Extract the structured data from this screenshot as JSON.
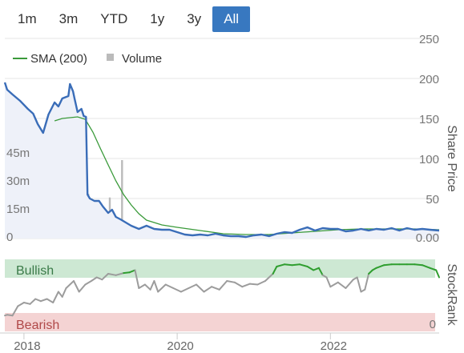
{
  "range_selector": {
    "buttons": [
      "1m",
      "3m",
      "YTD",
      "1y",
      "3y",
      "All"
    ],
    "active": "All"
  },
  "colors": {
    "price": "#3a6db8",
    "sma": "#3a9a3a",
    "volume": "#bbbbbb",
    "bullish_band": "#cde8d3",
    "bearish_band": "#f4d3d3",
    "stockrank_bull": "#2f9e2f",
    "stockrank_mid": "#9c9c9c",
    "stockrank_bear": "#d03030",
    "active_button": "#3878c0"
  },
  "chart_data": [
    {
      "type": "line",
      "legend": [
        {
          "label": "SMA (200)",
          "symbol": "line"
        },
        {
          "label": "Volume",
          "symbol": "square"
        }
      ],
      "y_right_label": "Share Price",
      "y_right_ticks": [
        "250",
        "200",
        "150",
        "100",
        "50",
        "0.00"
      ],
      "y_right_range": [
        0,
        250
      ],
      "y_left_ticks": [
        "45m",
        "30m",
        "15m",
        "0"
      ],
      "y_left_values": [
        45,
        30,
        15,
        0
      ],
      "y_left_unit": "m",
      "x_ticks": [
        {
          "label": "2018",
          "x": 2018.0
        },
        {
          "label": "2020",
          "x": 2020.0
        },
        {
          "label": "2022",
          "x": 2022.0
        }
      ],
      "x_range": [
        2017.75,
        2023.42
      ],
      "price": [
        [
          2017.75,
          195
        ],
        [
          2017.78,
          186
        ],
        [
          2017.85,
          180
        ],
        [
          2017.95,
          172
        ],
        [
          2018.05,
          162
        ],
        [
          2018.12,
          156
        ],
        [
          2018.18,
          143
        ],
        [
          2018.25,
          132
        ],
        [
          2018.32,
          155
        ],
        [
          2018.4,
          170
        ],
        [
          2018.45,
          165
        ],
        [
          2018.5,
          175
        ],
        [
          2018.58,
          178
        ],
        [
          2018.6,
          193
        ],
        [
          2018.64,
          184
        ],
        [
          2018.66,
          175
        ],
        [
          2018.7,
          158
        ],
        [
          2018.75,
          162
        ],
        [
          2018.78,
          153
        ],
        [
          2018.81,
          152
        ],
        [
          2018.83,
          55
        ],
        [
          2018.86,
          50
        ],
        [
          2018.92,
          47
        ],
        [
          2018.98,
          47
        ],
        [
          2019.03,
          40
        ],
        [
          2019.1,
          32
        ],
        [
          2019.15,
          36
        ],
        [
          2019.2,
          27
        ],
        [
          2019.26,
          24
        ],
        [
          2019.33,
          20
        ],
        [
          2019.4,
          16
        ],
        [
          2019.5,
          12
        ],
        [
          2019.6,
          16
        ],
        [
          2019.7,
          12
        ],
        [
          2019.8,
          11
        ],
        [
          2019.9,
          11
        ],
        [
          2020.0,
          8
        ],
        [
          2020.1,
          5
        ],
        [
          2020.2,
          4
        ],
        [
          2020.3,
          5
        ],
        [
          2020.4,
          4
        ],
        [
          2020.5,
          6
        ],
        [
          2020.6,
          4
        ],
        [
          2020.7,
          3
        ],
        [
          2020.8,
          3
        ],
        [
          2020.9,
          2
        ],
        [
          2021.0,
          4
        ],
        [
          2021.1,
          5
        ],
        [
          2021.2,
          3
        ],
        [
          2021.3,
          6
        ],
        [
          2021.4,
          8
        ],
        [
          2021.5,
          7
        ],
        [
          2021.6,
          11
        ],
        [
          2021.7,
          14
        ],
        [
          2021.8,
          10
        ],
        [
          2021.9,
          13
        ],
        [
          2022.0,
          12
        ],
        [
          2022.1,
          12
        ],
        [
          2022.2,
          9
        ],
        [
          2022.3,
          10
        ],
        [
          2022.4,
          12
        ],
        [
          2022.5,
          10
        ],
        [
          2022.6,
          12
        ],
        [
          2022.7,
          11
        ],
        [
          2022.8,
          13
        ],
        [
          2022.9,
          10
        ],
        [
          2023.0,
          13
        ],
        [
          2023.1,
          11
        ],
        [
          2023.2,
          12
        ],
        [
          2023.3,
          11
        ],
        [
          2023.42,
          10
        ]
      ],
      "sma_200": [
        [
          2018.4,
          147
        ],
        [
          2018.5,
          150
        ],
        [
          2018.6,
          151
        ],
        [
          2018.7,
          152
        ],
        [
          2018.8,
          149
        ],
        [
          2018.9,
          133
        ],
        [
          2019.0,
          112
        ],
        [
          2019.1,
          92
        ],
        [
          2019.2,
          72
        ],
        [
          2019.3,
          55
        ],
        [
          2019.4,
          42
        ],
        [
          2019.5,
          31
        ],
        [
          2019.6,
          23
        ],
        [
          2019.8,
          17
        ],
        [
          2020.0,
          14
        ],
        [
          2020.3,
          10
        ],
        [
          2020.6,
          6
        ],
        [
          2020.9,
          5
        ],
        [
          2021.2,
          5
        ],
        [
          2021.5,
          7
        ],
        [
          2021.8,
          9
        ],
        [
          2022.1,
          11
        ],
        [
          2022.4,
          12
        ],
        [
          2022.8,
          12
        ],
        [
          2023.1,
          12
        ],
        [
          2023.42,
          11
        ]
      ],
      "volume_m": [
        [
          2017.8,
          1
        ],
        [
          2017.95,
          2
        ],
        [
          2018.0,
          1.5
        ],
        [
          2018.1,
          2
        ],
        [
          2018.25,
          2
        ],
        [
          2018.32,
          4
        ],
        [
          2018.4,
          2.5
        ],
        [
          2018.5,
          1
        ],
        [
          2018.6,
          1.5
        ],
        [
          2018.7,
          2
        ],
        [
          2018.84,
          24
        ],
        [
          2018.88,
          8
        ],
        [
          2018.95,
          4
        ],
        [
          2019.0,
          8
        ],
        [
          2019.05,
          4
        ],
        [
          2019.08,
          14
        ],
        [
          2019.12,
          22
        ],
        [
          2019.16,
          6
        ],
        [
          2019.2,
          4
        ],
        [
          2019.28,
          42
        ],
        [
          2019.33,
          6
        ],
        [
          2019.4,
          3
        ],
        [
          2019.5,
          2
        ],
        [
          2019.6,
          2
        ],
        [
          2019.8,
          1
        ],
        [
          2020.0,
          1
        ],
        [
          2020.3,
          1.5
        ],
        [
          2020.6,
          1
        ],
        [
          2021.0,
          1
        ],
        [
          2021.3,
          1
        ],
        [
          2021.5,
          2
        ],
        [
          2021.6,
          3
        ],
        [
          2021.75,
          4
        ],
        [
          2021.85,
          5
        ],
        [
          2022.0,
          3
        ],
        [
          2022.2,
          2
        ],
        [
          2022.5,
          2
        ],
        [
          2022.8,
          2
        ],
        [
          2023.1,
          2
        ],
        [
          2023.3,
          1.5
        ]
      ]
    },
    {
      "type": "line",
      "y_right_label": "StockRank",
      "band_labels": {
        "top": "Bullish",
        "bottom": "Bearish"
      },
      "y_right_ticks": [
        "0"
      ],
      "y_range": [
        0,
        100
      ],
      "bullish_threshold": 80,
      "bearish_threshold": 20,
      "stockrank": [
        [
          2017.75,
          22
        ],
        [
          2017.78,
          23
        ],
        [
          2017.85,
          22
        ],
        [
          2017.92,
          35
        ],
        [
          2018.0,
          40
        ],
        [
          2018.08,
          38
        ],
        [
          2018.15,
          45
        ],
        [
          2018.22,
          42
        ],
        [
          2018.3,
          45
        ],
        [
          2018.38,
          40
        ],
        [
          2018.45,
          55
        ],
        [
          2018.5,
          48
        ],
        [
          2018.55,
          60
        ],
        [
          2018.65,
          70
        ],
        [
          2018.72,
          55
        ],
        [
          2018.8,
          65
        ],
        [
          2018.88,
          70
        ],
        [
          2018.95,
          75
        ],
        [
          2019.02,
          72
        ],
        [
          2019.1,
          80
        ],
        [
          2019.2,
          78
        ],
        [
          2019.3,
          81
        ],
        [
          2019.38,
          82
        ],
        [
          2019.45,
          85
        ],
        [
          2019.5,
          60
        ],
        [
          2019.58,
          65
        ],
        [
          2019.65,
          58
        ],
        [
          2019.7,
          70
        ],
        [
          2019.75,
          55
        ],
        [
          2019.85,
          65
        ],
        [
          2019.95,
          60
        ],
        [
          2020.05,
          55
        ],
        [
          2020.15,
          60
        ],
        [
          2020.25,
          65
        ],
        [
          2020.35,
          55
        ],
        [
          2020.45,
          62
        ],
        [
          2020.55,
          58
        ],
        [
          2020.65,
          70
        ],
        [
          2020.75,
          68
        ],
        [
          2020.85,
          62
        ],
        [
          2020.95,
          66
        ],
        [
          2021.05,
          65
        ],
        [
          2021.15,
          70
        ],
        [
          2021.25,
          80
        ],
        [
          2021.3,
          90
        ],
        [
          2021.4,
          93
        ],
        [
          2021.5,
          92
        ],
        [
          2021.6,
          93
        ],
        [
          2021.7,
          90
        ],
        [
          2021.78,
          85
        ],
        [
          2021.85,
          88
        ],
        [
          2021.9,
          78
        ],
        [
          2021.95,
          75
        ],
        [
          2022.0,
          62
        ],
        [
          2022.1,
          68
        ],
        [
          2022.2,
          60
        ],
        [
          2022.3,
          72
        ],
        [
          2022.35,
          75
        ],
        [
          2022.4,
          55
        ],
        [
          2022.45,
          58
        ],
        [
          2022.5,
          80
        ],
        [
          2022.55,
          85
        ],
        [
          2022.6,
          88
        ],
        [
          2022.7,
          92
        ],
        [
          2022.8,
          93
        ],
        [
          2022.9,
          93
        ],
        [
          2023.0,
          93
        ],
        [
          2023.1,
          93
        ],
        [
          2023.2,
          92
        ],
        [
          2023.3,
          88
        ],
        [
          2023.38,
          85
        ],
        [
          2023.42,
          75
        ]
      ]
    }
  ]
}
